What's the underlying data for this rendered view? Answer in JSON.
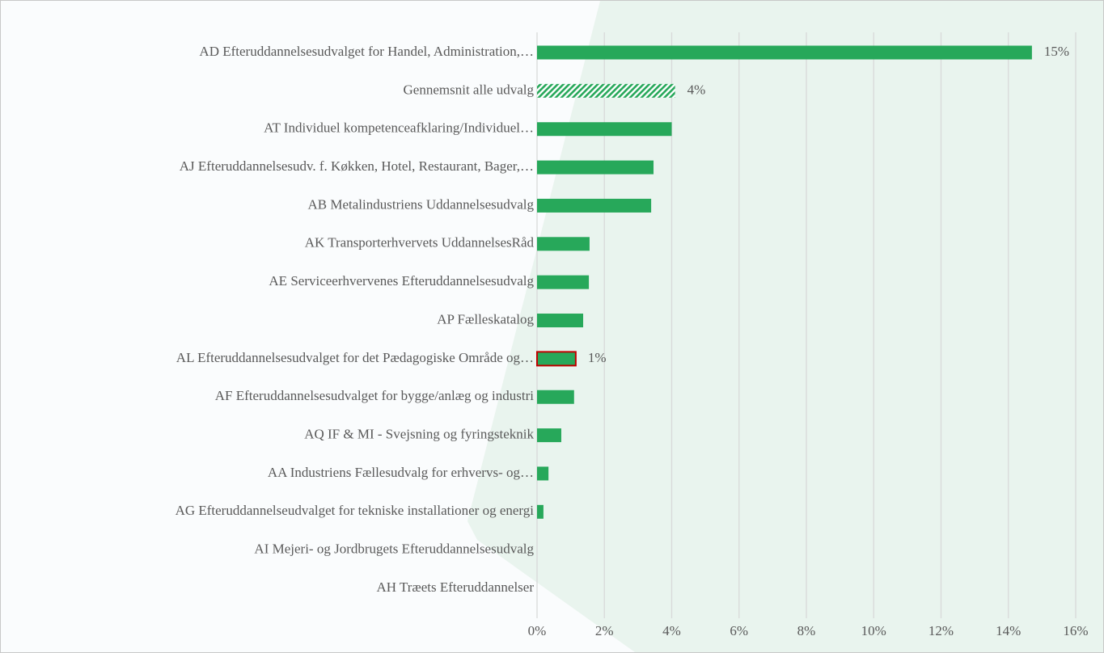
{
  "chart_data": {
    "type": "barh",
    "categories": [
      "AD Efteruddannelsesudvalget for Handel, Administration,…",
      "Gennemsnit alle udvalg",
      "AT Individuel kompetenceafklaring/Individuel…",
      "AJ Efteruddannelsesudv. f. Køkken, Hotel, Restaurant, Bager,…",
      "AB Metalindustriens Uddannelsesudvalg",
      "AK Transporterhvervets UddannelsesRåd",
      "AE Serviceerhvervenes Efteruddannelsesudvalg",
      "AP Fælleskatalog",
      "AL Efteruddannelsesudvalget for det Pædagogiske Område og…",
      "AF Efteruddannelsesudvalget for bygge/anlæg og industri",
      "AQ IF & MI - Svejsning og fyringsteknik",
      "AA Industriens Fællesudvalg for erhvervs- og…",
      "AG Efteruddannelseudvalget for tekniske installationer og energi",
      "AI Mejeri- og Jordbrugets Efteruddannelsesudvalg",
      "AH Træets Efteruddannelser"
    ],
    "values": [
      14.7,
      4.1,
      4.0,
      3.46,
      3.39,
      1.56,
      1.54,
      1.37,
      1.15,
      1.1,
      0.72,
      0.34,
      0.19,
      0,
      0
    ],
    "value_labels": [
      "15%",
      "4%",
      null,
      null,
      null,
      null,
      null,
      null,
      "1%",
      null,
      null,
      null,
      null,
      null,
      null
    ],
    "color": "#27a85a",
    "hatched_index": 1,
    "outlined_index": 8,
    "outline_color": "#c00000",
    "xlim": [
      0,
      16
    ],
    "xticks": [
      {
        "value": 0,
        "label": "0%"
      },
      {
        "value": 2,
        "label": "2%"
      },
      {
        "value": 4,
        "label": "4%"
      },
      {
        "value": 6,
        "label": "6%"
      },
      {
        "value": 8,
        "label": "8%"
      },
      {
        "value": 10,
        "label": "10%"
      },
      {
        "value": 12,
        "label": "12%"
      },
      {
        "value": 14,
        "label": "14%"
      },
      {
        "value": 16,
        "label": "16%"
      }
    ],
    "grid": true
  }
}
